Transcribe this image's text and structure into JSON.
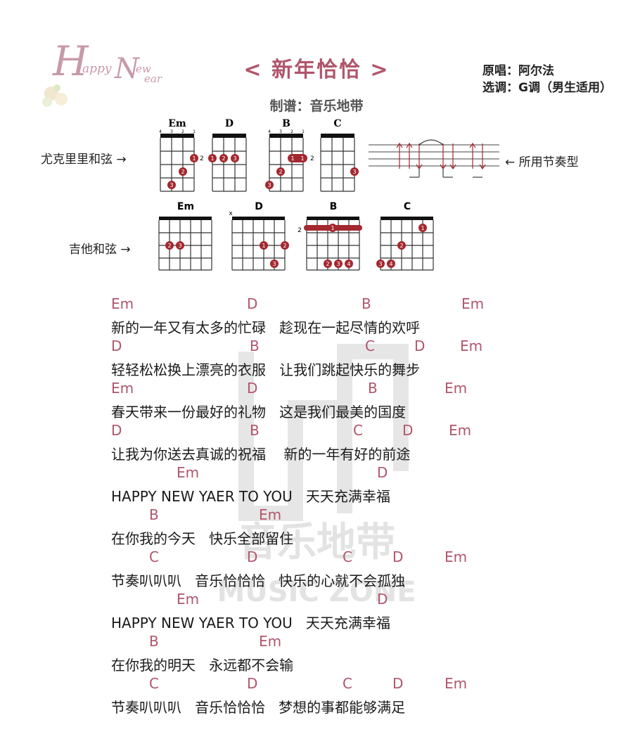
{
  "logo_text": "HappyNewYear",
  "title": "< 新年恰恰 >",
  "meta": {
    "original": "原唱：阿尔法",
    "key": "选调：G调（男生适用）"
  },
  "credit": "制谱：音乐地带",
  "labels": {
    "ukulele": "尤克里里和弦 →",
    "rhythm": "← 所用节奏型",
    "guitar": "吉他和弦 →"
  },
  "ukulele_chords": [
    {
      "name": "Em",
      "fret_label": "2",
      "string_numbers": [
        "4",
        "3",
        "2",
        "1"
      ]
    },
    {
      "name": "D",
      "fret_label": "",
      "string_numbers": [
        "4",
        "3",
        "2",
        "1"
      ]
    },
    {
      "name": "B",
      "fret_label": "2",
      "string_numbers": [
        "4",
        "3",
        "2",
        "1"
      ]
    },
    {
      "name": "C",
      "fret_label": "",
      "string_numbers": [
        "4",
        "3",
        "2",
        "1"
      ]
    }
  ],
  "guitar_chords": [
    {
      "name": "Em",
      "marker": "",
      "fret_label": ""
    },
    {
      "name": "D",
      "marker": "x",
      "fret_label": ""
    },
    {
      "name": "B",
      "marker": "",
      "fret_label": "2"
    },
    {
      "name": "C",
      "marker": "",
      "fret_label": ""
    }
  ],
  "watermark": "音乐地带 MUSIC ZONE",
  "lyrics": [
    {
      "chords": [
        "Em",
        "D",
        "B",
        "Em"
      ],
      "text": "新的一年又有太多的忙碌   趁现在一起尽情的欢呼"
    },
    {
      "chords": [
        "D",
        "B",
        "C",
        "D",
        "Em"
      ],
      "text": "轻轻松松换上漂亮的衣服   让我们跳起快乐的舞步"
    },
    {
      "chords": [
        "Em",
        "D",
        "B",
        "Em"
      ],
      "text": "春天带来一份最好的礼物   这是我们最美的国度"
    },
    {
      "chords": [
        "D",
        "B",
        "C",
        "D",
        "Em"
      ],
      "text": "让我为你送去真诚的祝福    新的一年有好的前途"
    },
    {
      "chords": [
        "Em",
        "D"
      ],
      "text": "HAPPY NEW YAER TO YOU   天天充满幸福"
    },
    {
      "chords": [
        "B",
        "Em"
      ],
      "text": "在你我的今天   快乐全部留住"
    },
    {
      "chords": [
        "C",
        "D",
        "C",
        "D",
        "Em"
      ],
      "text": "节奏叭叭叭   音乐恰恰恰   快乐的心就不会孤独"
    },
    {
      "chords": [
        "Em",
        "D"
      ],
      "text": "HAPPY NEW YAER TO YOU   天天充满幸福"
    },
    {
      "chords": [
        "B",
        "Em"
      ],
      "text": "在你我的明天   永远都不会输"
    },
    {
      "chords": [
        "C",
        "D",
        "C",
        "D",
        "Em"
      ],
      "text": "节奏叭叭叭   音乐恰恰恰   梦想的事都能够满足"
    }
  ]
}
